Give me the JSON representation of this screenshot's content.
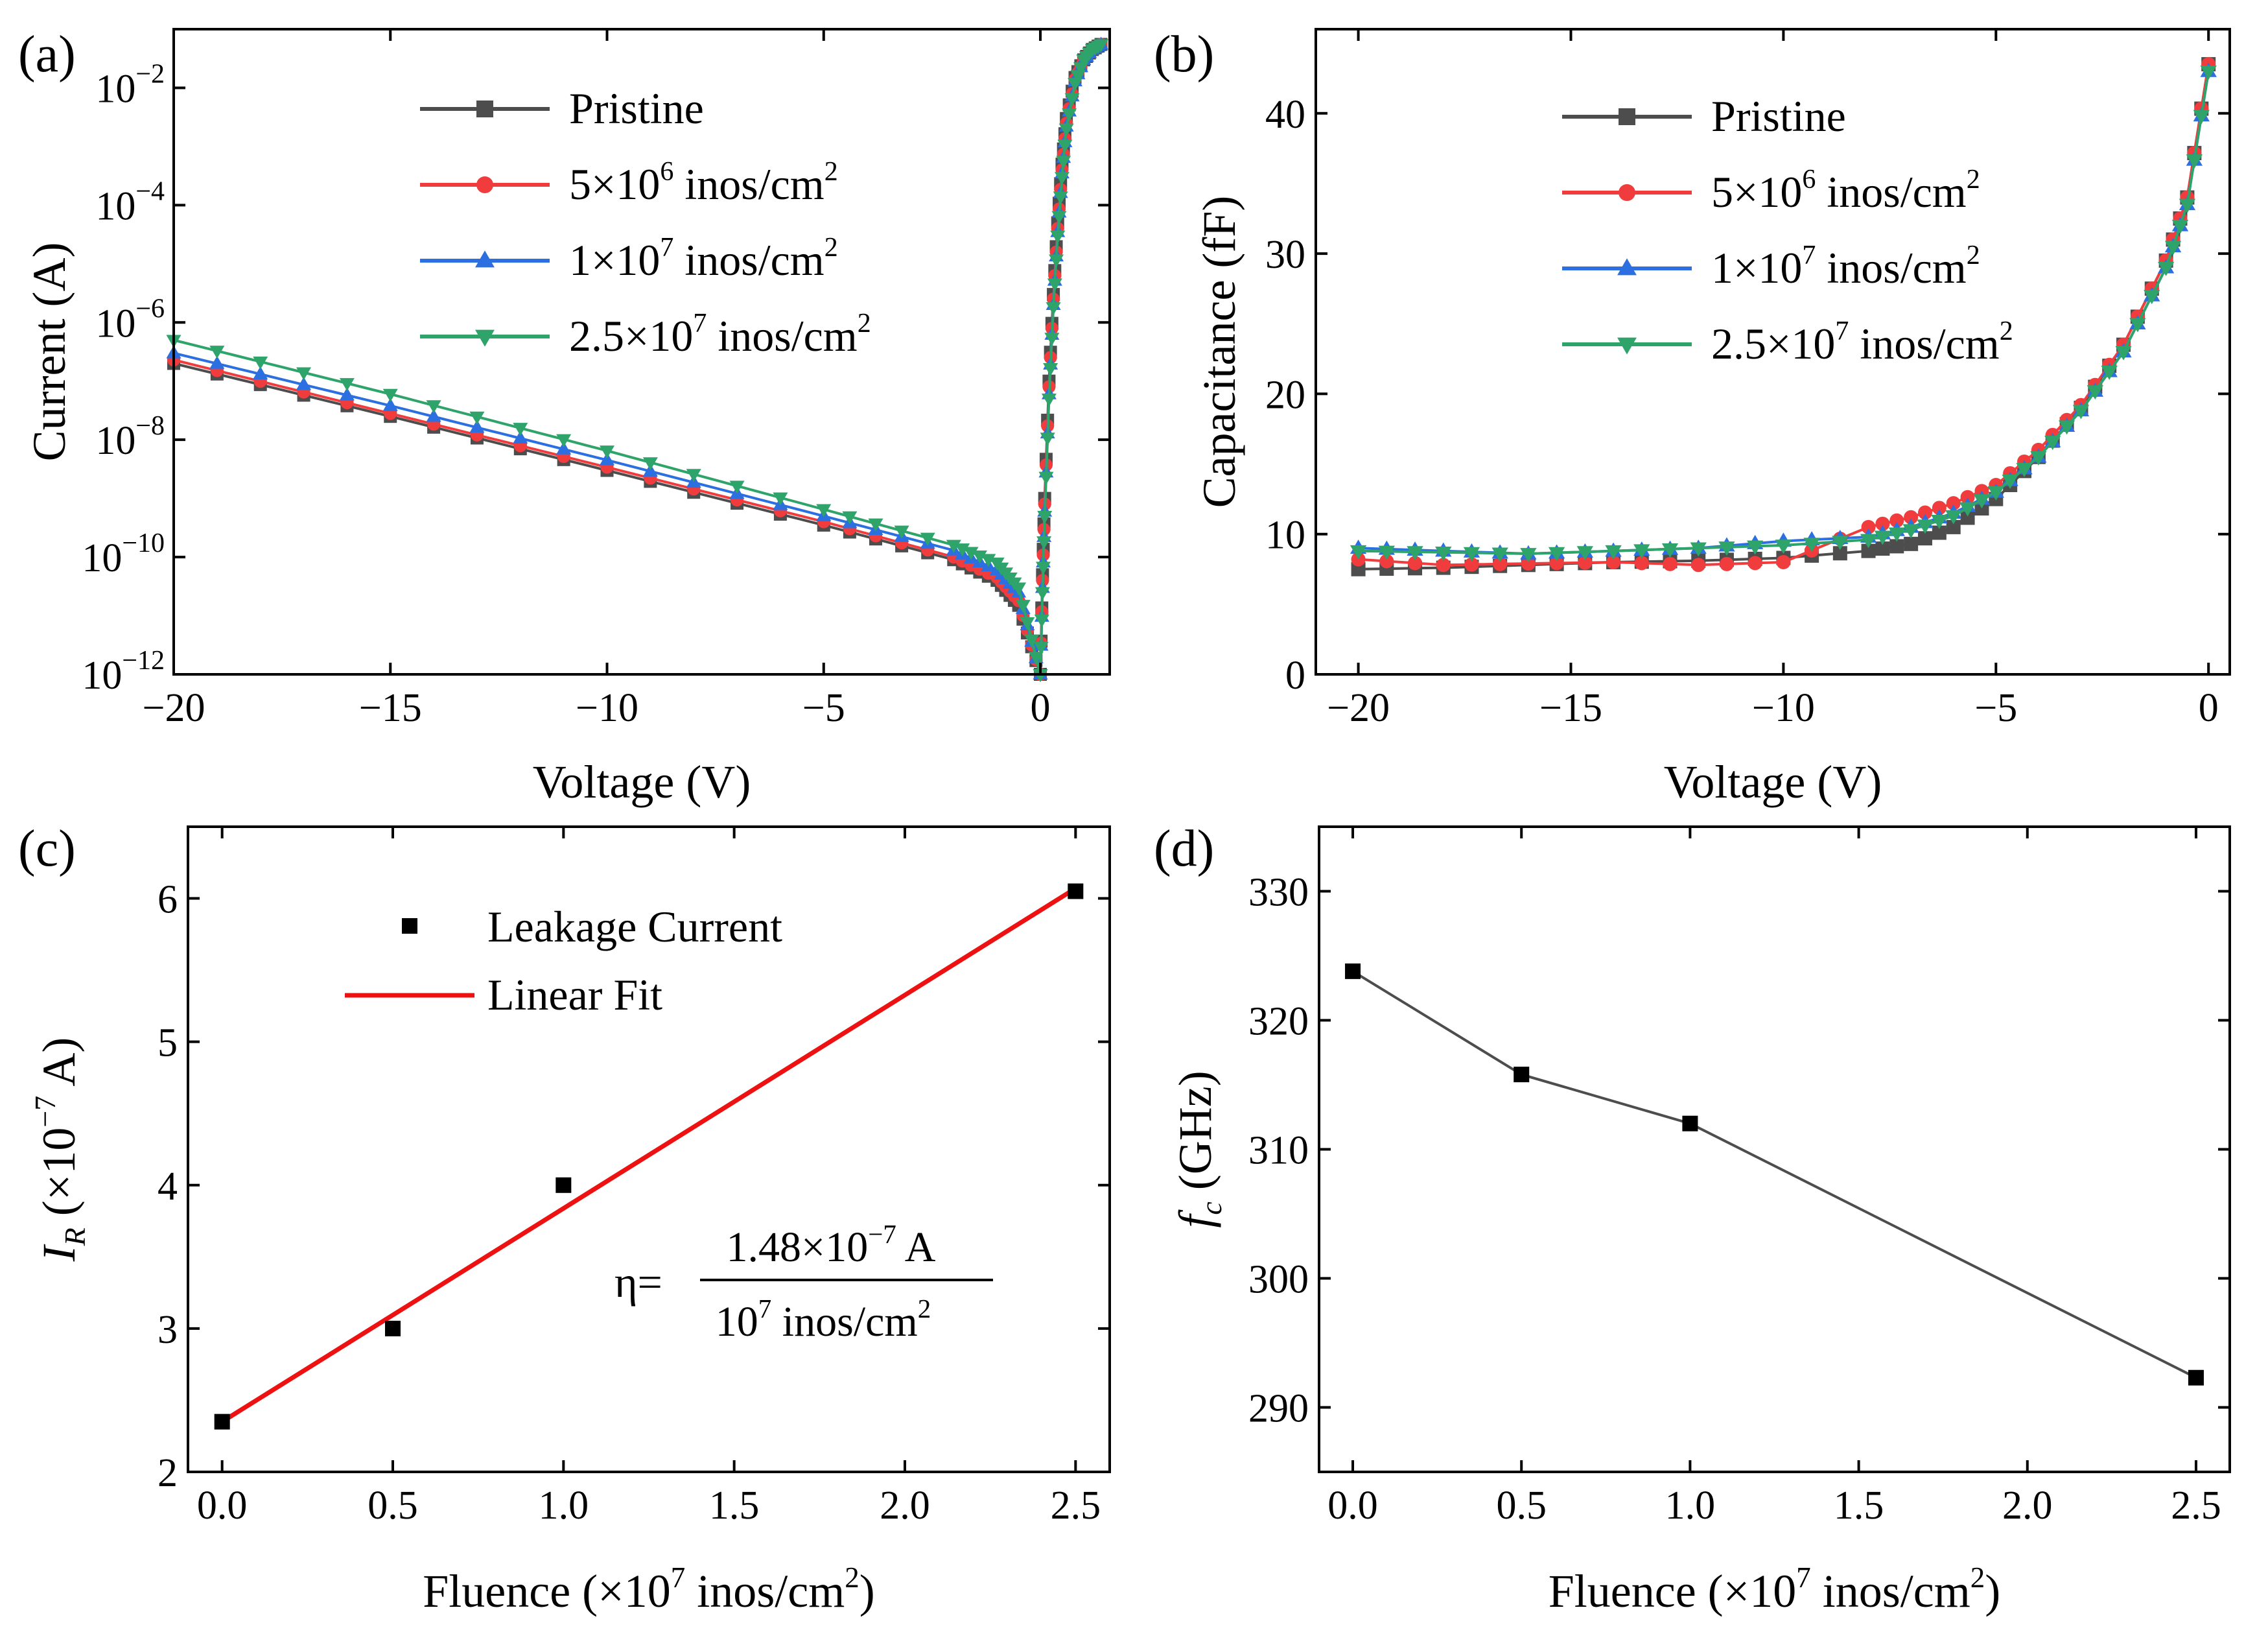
{
  "chart_data": [
    {
      "panel": "(a)",
      "type": "line",
      "xlabel": "Voltage (V)",
      "ylabel": "Current (A)",
      "yscale": "log",
      "xlim": [
        -20,
        1.6
      ],
      "ylim": [
        1e-12,
        0.1
      ],
      "xticks": [
        -20,
        -15,
        -10,
        -5,
        0
      ],
      "xtick_labels": [
        "−20",
        "−15",
        "−10",
        "−5",
        "0"
      ],
      "yticks": [
        1e-12,
        1e-10,
        1e-08,
        1e-06,
        0.0001,
        0.01
      ],
      "ytick_labels": [
        {
          "base": "10",
          "exp": "-12"
        },
        {
          "base": "10",
          "exp": "-10"
        },
        {
          "base": "10",
          "exp": "-8"
        },
        {
          "base": "10",
          "exp": "-6"
        },
        {
          "base": "10",
          "exp": "-4"
        },
        {
          "base": "10",
          "exp": "-2"
        }
      ],
      "legend_position": "top-center",
      "series": [
        {
          "name": "Pristine",
          "label_parts": [
            "Pristine",
            "",
            ""
          ],
          "color": "#4d4d4d",
          "marker": "square",
          "reverse_x": [
            -20,
            -15,
            -10,
            -5,
            -2,
            -1,
            -0.5,
            0
          ],
          "reverse_y": [
            2e-07,
            2.5e-08,
            3e-09,
            3.5e-10,
            9e-11,
            4e-11,
            1.5e-11,
            1e-12
          ],
          "forward_x": [
            0,
            0.05,
            0.1,
            0.2,
            0.3,
            0.4,
            0.5,
            0.6,
            0.8,
            1.0,
            1.2,
            1.4
          ],
          "forward_y": [
            1e-12,
            5e-11,
            1e-09,
            1e-07,
            3e-06,
            5e-05,
            0.0005,
            0.003,
            0.015,
            0.03,
            0.045,
            0.055
          ]
        },
        {
          "name": "5×10^6 inos/cm^2",
          "label_parts": [
            "5×10",
            "6",
            " inos/cm",
            "2"
          ],
          "color": "#f03c3c",
          "marker": "circle",
          "reverse_x": [
            -20,
            -15,
            -10,
            -5,
            -2,
            -1,
            -0.5,
            0
          ],
          "reverse_y": [
            2.3e-07,
            2.8e-08,
            3.4e-09,
            4e-10,
            1e-10,
            4.5e-11,
            1.8e-11,
            1e-12
          ],
          "forward_x": [
            0,
            0.05,
            0.1,
            0.2,
            0.3,
            0.4,
            0.5,
            0.6,
            0.8,
            1.0,
            1.2,
            1.4
          ],
          "forward_y": [
            1e-12,
            4e-11,
            8e-10,
            8e-08,
            2.5e-06,
            4e-05,
            0.0004,
            0.0025,
            0.014,
            0.03,
            0.045,
            0.055
          ]
        },
        {
          "name": "1×10^7 inos/cm^2",
          "label_parts": [
            "1×10",
            "7",
            " inos/cm",
            "2"
          ],
          "color": "#2b6fe0",
          "marker": "triangle-up",
          "reverse_x": [
            -20,
            -15,
            -10,
            -5,
            -2,
            -1,
            -0.5,
            0
          ],
          "reverse_y": [
            3e-07,
            3.8e-08,
            4.5e-09,
            5e-10,
            1.3e-10,
            6e-11,
            2.5e-11,
            1e-12
          ],
          "forward_x": [
            0,
            0.05,
            0.1,
            0.2,
            0.3,
            0.4,
            0.5,
            0.6,
            0.8,
            1.0,
            1.2,
            1.4
          ],
          "forward_y": [
            1e-12,
            3e-11,
            6e-10,
            6e-08,
            2e-06,
            3.5e-05,
            0.00035,
            0.0022,
            0.013,
            0.03,
            0.045,
            0.055
          ]
        },
        {
          "name": "2.5×10^7 inos/cm^2",
          "label_parts": [
            "2.5×10",
            "7",
            " inos/cm",
            "2"
          ],
          "color": "#2ea36a",
          "marker": "triangle-down",
          "reverse_x": [
            -20,
            -15,
            -10,
            -5,
            -2,
            -1,
            -0.5,
            0
          ],
          "reverse_y": [
            5e-07,
            6e-08,
            6.5e-09,
            6.5e-10,
            1.6e-10,
            8e-11,
            3e-11,
            1e-12
          ],
          "forward_x": [
            0,
            0.05,
            0.1,
            0.2,
            0.3,
            0.4,
            0.5,
            0.6,
            0.8,
            1.0,
            1.2,
            1.4
          ],
          "forward_y": [
            1e-12,
            2.5e-11,
            5e-10,
            5e-08,
            1.8e-06,
            3e-05,
            0.0003,
            0.002,
            0.012,
            0.03,
            0.045,
            0.055
          ]
        }
      ]
    },
    {
      "panel": "(b)",
      "type": "line",
      "xlabel": "Voltage (V)",
      "ylabel": "Capacitance (fF)",
      "xlim": [
        -21,
        0.5
      ],
      "ylim": [
        0,
        46
      ],
      "xticks": [
        -20,
        -15,
        -10,
        -5,
        0
      ],
      "xtick_labels": [
        "−20",
        "−15",
        "−10",
        "−5",
        "0"
      ],
      "yticks": [
        0,
        10,
        20,
        30,
        40
      ],
      "ytick_labels": [
        "0",
        "10",
        "20",
        "30",
        "40"
      ],
      "legend_position": "top-center",
      "series": [
        {
          "name": "Pristine",
          "label_parts": [
            "Pristine",
            "",
            ""
          ],
          "color": "#4d4d4d",
          "marker": "square",
          "x": [
            -20,
            -18,
            -16,
            -14,
            -12,
            -10,
            -8,
            -7,
            -6,
            -5,
            -4,
            -3,
            -2,
            -1,
            -0.5,
            0
          ],
          "y": [
            7.5,
            7.6,
            7.8,
            8.0,
            8.1,
            8.3,
            8.8,
            9.3,
            10.5,
            12.5,
            15.5,
            19.0,
            23.5,
            29.5,
            34.0,
            43.5
          ]
        },
        {
          "name": "5×10^6 inos/cm^2",
          "label_parts": [
            "5×10",
            "6",
            " inos/cm",
            "2"
          ],
          "color": "#f03c3c",
          "marker": "circle",
          "x": [
            -20,
            -18,
            -16,
            -14,
            -12,
            -10,
            -8,
            -7,
            -6,
            -5,
            -4,
            -3,
            -2,
            -1,
            -0.5,
            0
          ],
          "y": [
            8.2,
            7.8,
            7.9,
            8.0,
            7.8,
            8.0,
            10.5,
            11.2,
            12.2,
            13.5,
            16.0,
            19.2,
            23.5,
            29.5,
            34.0,
            43.5
          ]
        },
        {
          "name": "1×10^7 inos/cm^2",
          "label_parts": [
            "1×10",
            "7",
            " inos/cm",
            "2"
          ],
          "color": "#2b6fe0",
          "marker": "triangle-up",
          "x": [
            -20,
            -18,
            -16,
            -14,
            -12,
            -10,
            -8,
            -7,
            -6,
            -5,
            -4,
            -3,
            -2,
            -1,
            -0.5,
            0
          ],
          "y": [
            9.0,
            8.8,
            8.6,
            8.8,
            9.0,
            9.5,
            9.8,
            10.5,
            11.5,
            13.0,
            15.5,
            18.8,
            23.0,
            29.0,
            33.5,
            43.0
          ]
        },
        {
          "name": "2.5×10^7 inos/cm^2",
          "label_parts": [
            "2.5×10",
            "7",
            " inos/cm",
            "2"
          ],
          "color": "#2ea36a",
          "marker": "triangle-down",
          "x": [
            -20,
            -18,
            -16,
            -14,
            -12,
            -10,
            -8,
            -7,
            -6,
            -5,
            -4,
            -3,
            -2,
            -1,
            -0.5,
            0
          ],
          "y": [
            8.8,
            8.7,
            8.6,
            8.8,
            9.0,
            9.2,
            9.6,
            10.3,
            11.3,
            13.0,
            15.5,
            18.8,
            23.0,
            29.0,
            33.5,
            43.0
          ]
        }
      ]
    },
    {
      "panel": "(c)",
      "type": "scatter",
      "xlabel_parts": [
        "Fluence (×10",
        "7",
        " inos/cm",
        "2",
        ")"
      ],
      "ylabel_parts": [
        "I",
        "R",
        " (×10",
        "−7",
        " A)"
      ],
      "xlim": [
        -0.1,
        2.6
      ],
      "ylim": [
        2,
        6.5
      ],
      "xticks": [
        0,
        0.5,
        1.0,
        1.5,
        2.0,
        2.5
      ],
      "xtick_labels": [
        "0.0",
        "0.5",
        "1.0",
        "1.5",
        "2.0",
        "2.5"
      ],
      "yticks": [
        2,
        3,
        4,
        5,
        6
      ],
      "ytick_labels": [
        "2",
        "3",
        "4",
        "5",
        "6"
      ],
      "legend_position": "top-center",
      "series": [
        {
          "name": "Leakage Current",
          "color": "#000000",
          "marker": "square",
          "x": [
            0,
            0.5,
            1.0,
            2.5
          ],
          "y": [
            2.35,
            3.0,
            4.0,
            6.05
          ]
        }
      ],
      "fit": {
        "name": "Linear Fit",
        "color": "#ee1111",
        "x": [
          0,
          2.5
        ],
        "y": [
          2.35,
          6.07
        ]
      },
      "annotation": {
        "lhs": "η=",
        "num_parts": [
          "1.48×10",
          "−7",
          " A"
        ],
        "den_parts": [
          "10",
          "7",
          " inos/cm",
          "2"
        ]
      }
    },
    {
      "panel": "(d)",
      "type": "line",
      "xlabel_parts": [
        "Fluence (×10",
        "7",
        " inos/cm",
        "2",
        ")"
      ],
      "ylabel_parts": [
        "f",
        "c",
        " (GHz)"
      ],
      "xlim": [
        -0.1,
        2.6
      ],
      "ylim": [
        285,
        335
      ],
      "xticks": [
        0,
        0.5,
        1.0,
        1.5,
        2.0,
        2.5
      ],
      "xtick_labels": [
        "0.0",
        "0.5",
        "1.0",
        "1.5",
        "2.0",
        "2.5"
      ],
      "yticks": [
        290,
        300,
        310,
        320,
        330
      ],
      "ytick_labels": [
        "290",
        "300",
        "310",
        "320",
        "330"
      ],
      "series": [
        {
          "name": "fc",
          "color": "#4d4d4d",
          "marker": "square",
          "x": [
            0,
            0.5,
            1.0,
            2.5
          ],
          "y": [
            323.8,
            315.8,
            312.0,
            292.3
          ]
        }
      ]
    }
  ]
}
